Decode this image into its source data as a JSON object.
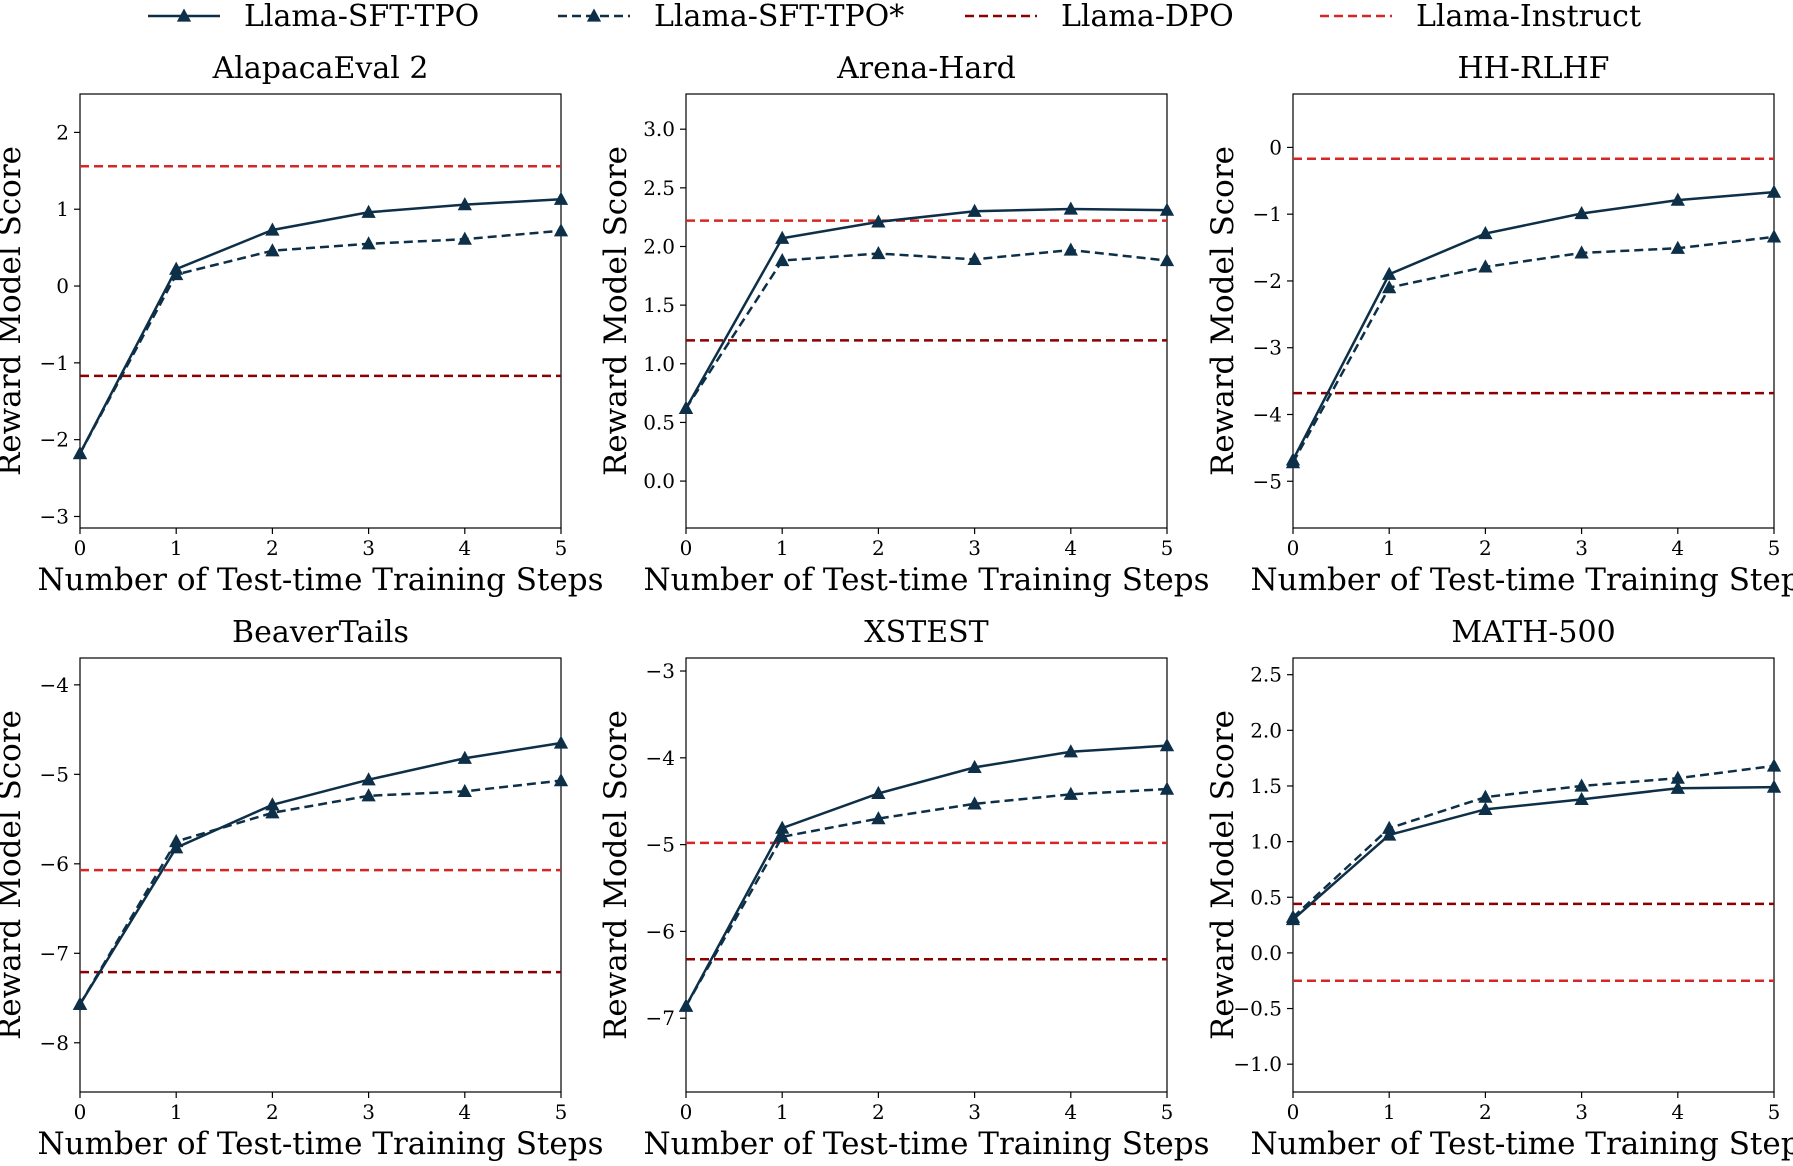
{
  "legend": {
    "entries": [
      {
        "label": "Llama-SFT-TPO",
        "color": "#0d2f47",
        "style": "solid",
        "marker": "triangle"
      },
      {
        "label": "Llama-SFT-TPO*",
        "color": "#0d2f47",
        "style": "dashed",
        "marker": "triangle"
      },
      {
        "label": "Llama-DPO",
        "color": "#8b0000",
        "style": "dashed",
        "marker": "none"
      },
      {
        "label": "Llama-Instruct",
        "color": "#d62728",
        "style": "dashed",
        "marker": "none"
      }
    ]
  },
  "chart_data": [
    {
      "type": "line",
      "title": "AlapacaEval 2",
      "xlabel": "Number of Test-time Training Steps",
      "ylabel": "Reward Model Score",
      "x": [
        0,
        1,
        2,
        3,
        4,
        5
      ],
      "xlim": [
        0,
        5
      ],
      "ylim": [
        -3.15,
        2.5
      ],
      "yticks": [
        -3,
        -2,
        -1,
        0,
        1,
        2
      ],
      "ytick_labels": [
        "−3",
        "−2",
        "−1",
        "0",
        "1",
        "2"
      ],
      "series": [
        {
          "name": "Llama-SFT-TPO",
          "values": [
            -2.18,
            0.22,
            0.73,
            0.96,
            1.06,
            1.13
          ]
        },
        {
          "name": "Llama-SFT-TPO*",
          "values": [
            -2.18,
            0.15,
            0.46,
            0.55,
            0.61,
            0.72
          ]
        }
      ],
      "hlines": [
        {
          "name": "Llama-DPO",
          "value": -1.17
        },
        {
          "name": "Llama-Instruct",
          "value": 1.56
        }
      ]
    },
    {
      "type": "line",
      "title": "Arena-Hard",
      "xlabel": "Number of Test-time Training Steps",
      "ylabel": "Reward Model Score",
      "x": [
        0,
        1,
        2,
        3,
        4,
        5
      ],
      "xlim": [
        0,
        5
      ],
      "ylim": [
        -0.4,
        3.3
      ],
      "yticks": [
        0.0,
        0.5,
        1.0,
        1.5,
        2.0,
        2.5,
        3.0
      ],
      "ytick_labels": [
        "0.0",
        "0.5",
        "1.0",
        "1.5",
        "2.0",
        "2.5",
        "3.0"
      ],
      "series": [
        {
          "name": "Llama-SFT-TPO",
          "values": [
            0.62,
            2.07,
            2.21,
            2.3,
            2.32,
            2.31
          ]
        },
        {
          "name": "Llama-SFT-TPO*",
          "values": [
            0.62,
            1.88,
            1.94,
            1.89,
            1.97,
            1.88
          ]
        }
      ],
      "hlines": [
        {
          "name": "Llama-DPO",
          "value": 1.2
        },
        {
          "name": "Llama-Instruct",
          "value": 2.22
        }
      ]
    },
    {
      "type": "line",
      "title": "HH-RLHF",
      "xlabel": "Number of Test-time Training Steps",
      "ylabel": "Reward Model Score",
      "x": [
        0,
        1,
        2,
        3,
        4,
        5
      ],
      "xlim": [
        0,
        5
      ],
      "ylim": [
        -5.7,
        0.8
      ],
      "yticks": [
        -5,
        -4,
        -3,
        -2,
        -1,
        0
      ],
      "ytick_labels": [
        "−5",
        "−4",
        "−3",
        "−2",
        "−1",
        "0"
      ],
      "series": [
        {
          "name": "Llama-SFT-TPO",
          "values": [
            -4.68,
            -1.9,
            -1.29,
            -0.99,
            -0.79,
            -0.67
          ]
        },
        {
          "name": "Llama-SFT-TPO*",
          "values": [
            -4.72,
            -2.1,
            -1.79,
            -1.58,
            -1.51,
            -1.34
          ]
        }
      ],
      "hlines": [
        {
          "name": "Llama-DPO",
          "value": -3.68
        },
        {
          "name": "Llama-Instruct",
          "value": -0.17
        }
      ]
    },
    {
      "type": "line",
      "title": "BeaverTails",
      "xlabel": "Number of Test-time Training Steps",
      "ylabel": "Reward Model Score",
      "x": [
        0,
        1,
        2,
        3,
        4,
        5
      ],
      "xlim": [
        0,
        5
      ],
      "ylim": [
        -8.55,
        -3.7
      ],
      "yticks": [
        -8,
        -7,
        -6,
        -5,
        -4
      ],
      "ytick_labels": [
        "−8",
        "−7",
        "−6",
        "−5",
        "−4"
      ],
      "series": [
        {
          "name": "Llama-SFT-TPO",
          "values": [
            -7.57,
            -5.82,
            -5.34,
            -5.06,
            -4.82,
            -4.65
          ]
        },
        {
          "name": "Llama-SFT-TPO*",
          "values": [
            -7.57,
            -5.75,
            -5.43,
            -5.24,
            -5.19,
            -5.07
          ]
        }
      ],
      "hlines": [
        {
          "name": "Llama-DPO",
          "value": -7.21
        },
        {
          "name": "Llama-Instruct",
          "value": -6.07
        }
      ]
    },
    {
      "type": "line",
      "title": "XSTEST",
      "xlabel": "Number of Test-time Training Steps",
      "ylabel": "Reward Model Score",
      "x": [
        0,
        1,
        2,
        3,
        4,
        5
      ],
      "xlim": [
        0,
        5
      ],
      "ylim": [
        -7.85,
        -2.85
      ],
      "yticks": [
        -7,
        -6,
        -5,
        -4,
        -3
      ],
      "ytick_labels": [
        "−7",
        "−6",
        "−5",
        "−4",
        "−3"
      ],
      "series": [
        {
          "name": "Llama-SFT-TPO",
          "values": [
            -6.86,
            -4.81,
            -4.41,
            -4.11,
            -3.93,
            -3.86
          ]
        },
        {
          "name": "Llama-SFT-TPO*",
          "values": [
            -6.86,
            -4.91,
            -4.7,
            -4.53,
            -4.42,
            -4.36
          ]
        }
      ],
      "hlines": [
        {
          "name": "Llama-DPO",
          "value": -6.32
        },
        {
          "name": "Llama-Instruct",
          "value": -4.98
        }
      ]
    },
    {
      "type": "line",
      "title": "MATH-500",
      "xlabel": "Number of Test-time Training Steps",
      "ylabel": "Reward Model Score",
      "x": [
        0,
        1,
        2,
        3,
        4,
        5
      ],
      "xlim": [
        0,
        5
      ],
      "ylim": [
        -1.25,
        2.65
      ],
      "yticks": [
        -1.0,
        -0.5,
        0.0,
        0.5,
        1.0,
        1.5,
        2.0,
        2.5
      ],
      "ytick_labels": [
        "−1.0",
        "−0.5",
        "0.0",
        "0.5",
        "1.0",
        "1.5",
        "2.0",
        "2.5"
      ],
      "series": [
        {
          "name": "Llama-SFT-TPO",
          "values": [
            0.3,
            1.06,
            1.29,
            1.38,
            1.48,
            1.49
          ]
        },
        {
          "name": "Llama-SFT-TPO*",
          "values": [
            0.32,
            1.12,
            1.4,
            1.5,
            1.57,
            1.68
          ]
        }
      ],
      "hlines": [
        {
          "name": "Llama-DPO",
          "value": 0.44
        },
        {
          "name": "Llama-Instruct",
          "value": -0.25
        }
      ]
    }
  ]
}
